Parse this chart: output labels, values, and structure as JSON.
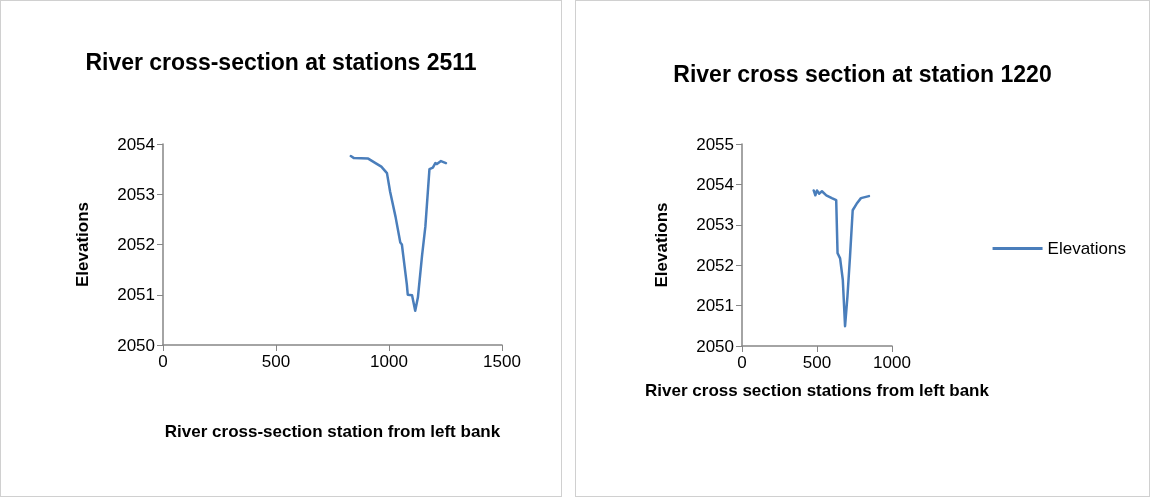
{
  "chart_data": [
    {
      "type": "line",
      "title": "River cross-section at stations 2511",
      "xlabel": "River cross-section station from left bank",
      "ylabel": "Elevations",
      "xlim": [
        0,
        1500
      ],
      "xticks": [
        0,
        500,
        1000,
        1500
      ],
      "ylim": [
        2050,
        2054
      ],
      "yticks": [
        2050,
        2051,
        2052,
        2053,
        2054
      ],
      "grid": false,
      "legend": false,
      "marker": "none",
      "series": [
        {
          "color": "#4a7ebb",
          "x": [
            831,
            845,
            908,
            944,
            966,
            991,
            1005,
            1029,
            1050,
            1057,
            1079,
            1083,
            1102,
            1116,
            1128,
            1146,
            1161,
            1179,
            1194,
            1205,
            1212,
            1230,
            1252
          ],
          "values": [
            2053.76,
            2053.72,
            2053.71,
            2053.61,
            2053.55,
            2053.42,
            2053.05,
            2052.55,
            2052.04,
            2052.0,
            2051.2,
            2051.0,
            2050.99,
            2050.68,
            2050.95,
            2051.77,
            2052.36,
            2053.5,
            2053.53,
            2053.62,
            2053.6,
            2053.66,
            2053.62
          ]
        }
      ]
    },
    {
      "type": "line",
      "title": "River cross section at station 1220",
      "xlabel": "River cross section stations from left bank",
      "ylabel": "Elevations",
      "xlim": [
        0,
        1000
      ],
      "xticks": [
        0,
        500,
        1000
      ],
      "ylim": [
        2050,
        2055
      ],
      "yticks": [
        2050,
        2051,
        2052,
        2053,
        2054,
        2055
      ],
      "grid": false,
      "legend": "right",
      "marker": "none",
      "series": [
        {
          "name": "Elevations",
          "color": "#4a7ebb",
          "x": [
            478,
            489,
            500,
            515,
            533,
            562,
            599,
            628,
            637,
            654,
            672,
            687,
            703,
            720,
            738,
            764,
            793,
            846
          ],
          "values": [
            2053.85,
            2053.73,
            2053.85,
            2053.77,
            2053.83,
            2053.73,
            2053.66,
            2053.61,
            2052.3,
            2052.17,
            2051.64,
            2050.49,
            2051.23,
            2052.21,
            2053.36,
            2053.52,
            2053.66,
            2053.71
          ]
        }
      ]
    }
  ]
}
